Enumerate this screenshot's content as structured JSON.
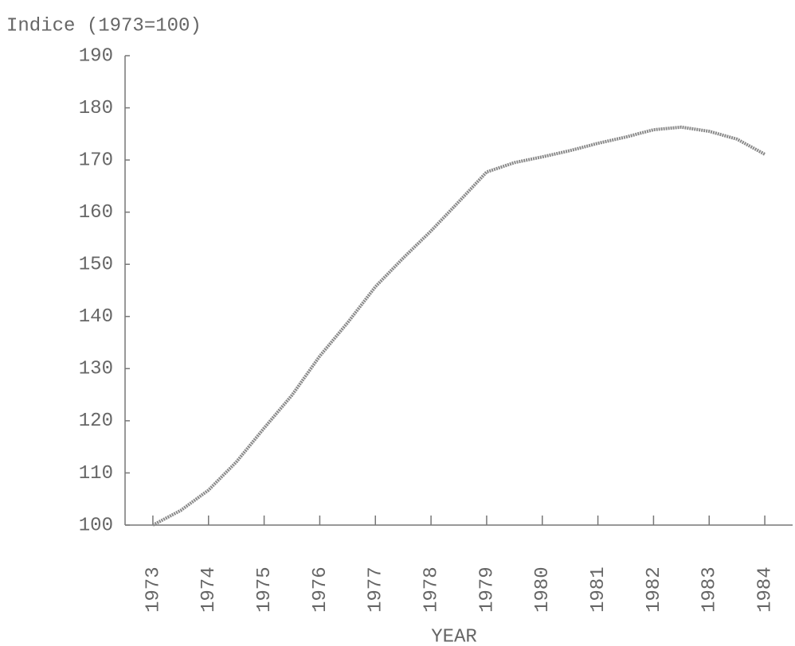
{
  "chart_data": {
    "type": "line",
    "title": "Indice (1973=100)",
    "x_label": "YEAR",
    "x": [
      1973,
      1973.5,
      1974,
      1974.5,
      1975,
      1975.5,
      1976,
      1976.5,
      1977,
      1977.5,
      1978,
      1978.5,
      1979,
      1979.5,
      1980,
      1980.5,
      1981,
      1981.5,
      1982,
      1982.5,
      1983,
      1983.5,
      1984
    ],
    "values": [
      100,
      102.8,
      106.7,
      112.1,
      118.6,
      124.9,
      132.4,
      138.8,
      145.7,
      151.2,
      156.4,
      162,
      167.7,
      169.5,
      170.6,
      171.8,
      173.2,
      174.4,
      175.8,
      176.3,
      175.5,
      174,
      171.1
    ],
    "color": "#8a8a8a",
    "xlim": [
      1972.5,
      1984.5
    ],
    "xticks": [
      1973,
      1974,
      1975,
      1976,
      1977,
      1978,
      1979,
      1980,
      1981,
      1982,
      1983,
      1984
    ],
    "ylim": [
      100,
      190
    ],
    "yticks": [
      100,
      110,
      120,
      130,
      140,
      150,
      160,
      170,
      180,
      190
    ]
  }
}
